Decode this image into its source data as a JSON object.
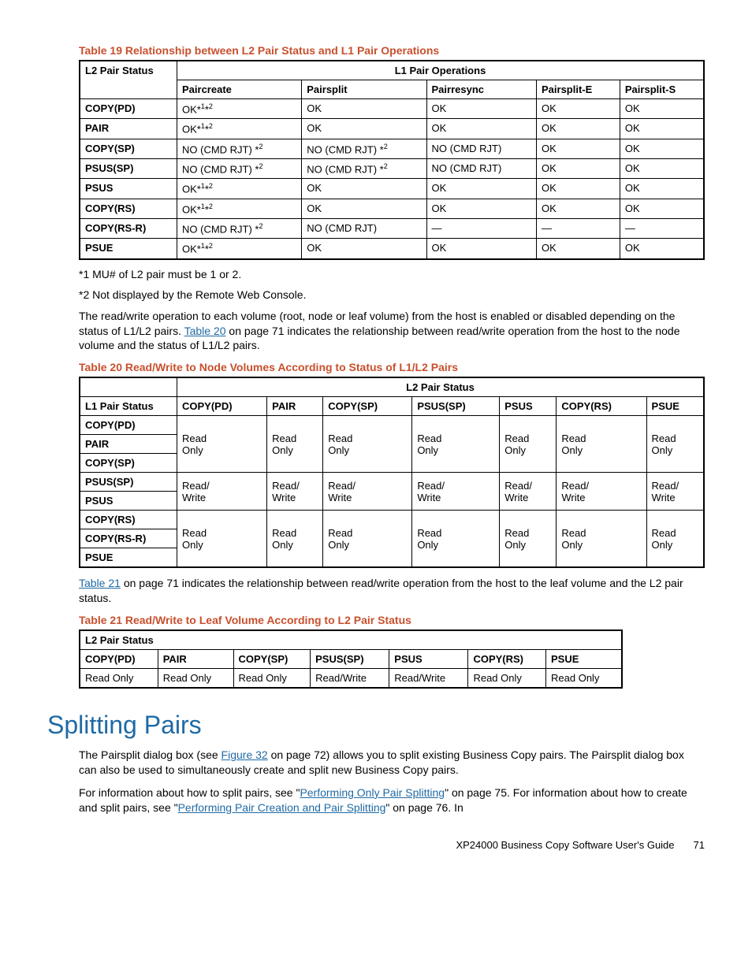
{
  "table19": {
    "caption": "Table 19 Relationship between L2 Pair Status and L1 Pair Operations",
    "col_left": "L2 Pair Status",
    "col_group": "L1 Pair Operations",
    "cols": [
      "Paircreate",
      "Pairsplit",
      "Pairresync",
      "Pairsplit-E",
      "Pairsplit-S"
    ],
    "rows": [
      {
        "label": "COPY(PD)",
        "cells": [
          "OK*1*2",
          "OK",
          "OK",
          "OK",
          "OK"
        ]
      },
      {
        "label": "PAIR",
        "cells": [
          "OK*1*2",
          "OK",
          "OK",
          "OK",
          "OK"
        ]
      },
      {
        "label": "COPY(SP)",
        "cells": [
          "NO (CMD RJT) *2",
          "NO (CMD RJT) *2",
          "NO (CMD RJT)",
          "OK",
          "OK"
        ]
      },
      {
        "label": "PSUS(SP)",
        "cells": [
          "NO (CMD RJT) *2",
          "NO (CMD RJT) *2",
          "NO (CMD RJT)",
          "OK",
          "OK"
        ]
      },
      {
        "label": "PSUS",
        "cells": [
          "OK*1*2",
          "OK",
          "OK",
          "OK",
          "OK"
        ]
      },
      {
        "label": "COPY(RS)",
        "cells": [
          "OK*1*2",
          "OK",
          "OK",
          "OK",
          "OK"
        ]
      },
      {
        "label": "COPY(RS-R)",
        "cells": [
          "NO (CMD RJT) *2",
          "NO (CMD RJT)",
          "—",
          "—",
          "—"
        ]
      },
      {
        "label": "PSUE",
        "cells": [
          "OK*1*2",
          "OK",
          "OK",
          "OK",
          "OK"
        ]
      }
    ]
  },
  "notes": {
    "n1": "*1 MU# of L2 pair must be 1 or 2.",
    "n2": "*2 Not displayed by the Remote Web Console."
  },
  "para1a": "The read/write operation to each volume (root, node or leaf volume) from the host is enabled or disabled depending on the status of L1/L2 pairs. ",
  "para1link": "Table 20",
  "para1b": " on page 71 indicates the relationship between read/write operation from the host to the node volume and the status of L1/L2 pairs.",
  "table20": {
    "caption": "Table 20 Read/Write to Node Volumes According to Status of L1/L2 Pairs",
    "group_header": "L2 Pair Status",
    "left_header": "L1 Pair Status",
    "cols": [
      "COPY(PD)",
      "PAIR",
      "COPY(SP)",
      "PSUS(SP)",
      "PSUS",
      "COPY(RS)",
      "PSUE"
    ],
    "groups": [
      {
        "labels": [
          "COPY(PD)",
          "PAIR",
          "COPY(SP)"
        ],
        "value": "Read Only"
      },
      {
        "labels": [
          "PSUS(SP)",
          "PSUS"
        ],
        "value": "Read/ Write"
      },
      {
        "labels": [
          "COPY(RS)",
          "COPY(RS-R)",
          "PSUE"
        ],
        "value": "Read Only"
      }
    ]
  },
  "para2link": "Table 21",
  "para2": " on page 71 indicates the relationship between read/write operation from the host to the leaf volume and the L2 pair status.",
  "table21": {
    "caption": "Table 21 Read/Write to Leaf Volume According to L2 Pair Status",
    "header": "L2 Pair Status",
    "cols": [
      "COPY(PD)",
      "PAIR",
      "COPY(SP)",
      "PSUS(SP)",
      "PSUS",
      "COPY(RS)",
      "PSUE"
    ],
    "vals": [
      "Read Only",
      "Read Only",
      "Read Only",
      "Read/Write",
      "Read/Write",
      "Read Only",
      "Read Only"
    ]
  },
  "section_title": "Splitting Pairs",
  "split_p1a": "The Pairsplit dialog box (see ",
  "split_p1_link": "Figure 32",
  "split_p1b": " on page 72) allows you to split existing Business Copy pairs. The Pairsplit dialog box can also be used to simultaneously create and split new Business Copy pairs.",
  "split_p2a": "For information about how to split pairs, see \"",
  "split_p2_link1": "Performing Only Pair Splitting",
  "split_p2b": "\" on page 75. For information about how to create and split pairs, see \"",
  "split_p2_link2": "Performing Pair Creation and Pair Splitting",
  "split_p2c": "\" on page 76. In",
  "footer_text": "XP24000 Business Copy Software User's Guide",
  "footer_page": "71"
}
